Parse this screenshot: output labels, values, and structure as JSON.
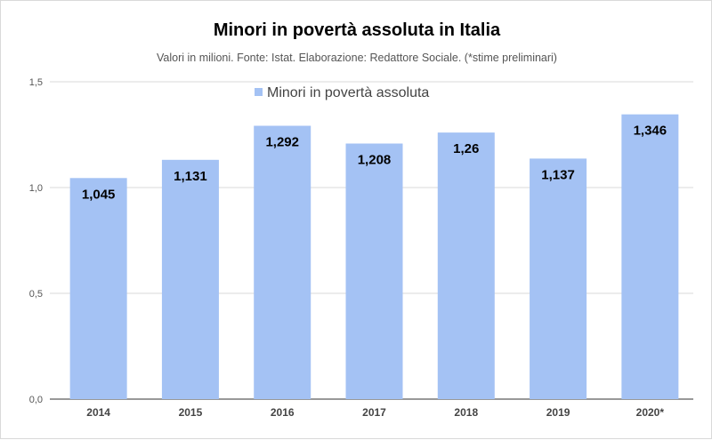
{
  "chart_data": {
    "type": "bar",
    "title": "Minori in povertà assoluta in Italia",
    "subtitle": "Valori in milioni. Fonte: Istat.  Elaborazione: Redattore Sociale. (*stime preliminari)",
    "categories": [
      "2014",
      "2015",
      "2016",
      "2017",
      "2018",
      "2019",
      "2020*"
    ],
    "series": [
      {
        "name": "Minori in povertà assoluta",
        "values": [
          1.045,
          1.131,
          1.292,
          1.208,
          1.26,
          1.137,
          1.346
        ],
        "labels": [
          "1,045",
          "1,131",
          "1,292",
          "1,208",
          "1,26",
          "1,137",
          "1,346"
        ]
      }
    ],
    "ylim": [
      0,
      1.5
    ],
    "yticks": [
      0,
      0.5,
      1.0,
      1.5
    ],
    "ytick_labels": [
      "0,0",
      "0,5",
      "1,0",
      "1,5"
    ],
    "xlabel": "",
    "ylabel": "",
    "grid": true,
    "legend_position": "top-center",
    "colors": {
      "bar": "#a4c2f4",
      "grid": "#d9d9d9",
      "axis": "#333333"
    }
  }
}
